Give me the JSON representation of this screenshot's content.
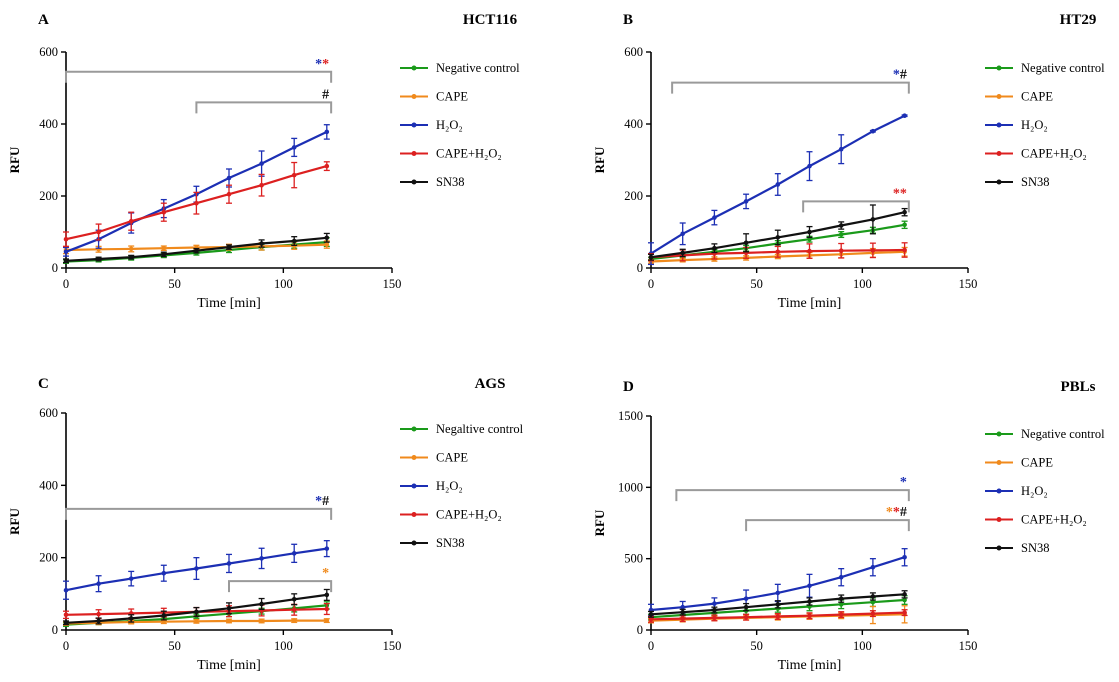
{
  "chart_data": [
    {
      "type": "line",
      "panel": "A",
      "title": "HCT116",
      "xlabel": "Time [min]",
      "ylabel": "RFU",
      "xlim": [
        0,
        150
      ],
      "ylim": [
        0,
        600
      ],
      "xticks": [
        "0",
        "50",
        "100",
        "150"
      ],
      "yticks": [
        "0",
        "200",
        "400",
        "600"
      ],
      "x": [
        0,
        15,
        30,
        45,
        60,
        75,
        90,
        105,
        120
      ],
      "series": [
        {
          "name": "Negative control",
          "color": "#1a9a1a",
          "values": [
            18,
            22,
            28,
            35,
            42,
            50,
            58,
            65,
            72
          ],
          "errors": [
            5,
            5,
            6,
            6,
            6,
            7,
            8,
            10,
            12
          ]
        },
        {
          "name": "CAPE",
          "color": "#f08a1c",
          "values": [
            50,
            52,
            53,
            55,
            57,
            58,
            60,
            62,
            65
          ],
          "errors": [
            10,
            8,
            8,
            6,
            6,
            8,
            10,
            10,
            10
          ]
        },
        {
          "name": "H₂O₂",
          "color": "#1c2fb4",
          "values": [
            45,
            80,
            125,
            165,
            205,
            250,
            290,
            335,
            378
          ],
          "errors": [
            12,
            25,
            28,
            25,
            22,
            25,
            35,
            25,
            20
          ]
        },
        {
          "name": "CAPE+H₂O₂",
          "color": "#dc2020",
          "values": [
            80,
            100,
            130,
            155,
            180,
            205,
            230,
            258,
            283
          ],
          "errors": [
            20,
            22,
            25,
            25,
            30,
            25,
            30,
            35,
            12
          ]
        },
        {
          "name": "SN38",
          "color": "#111111",
          "values": [
            20,
            25,
            30,
            38,
            48,
            58,
            68,
            75,
            84
          ],
          "errors": [
            5,
            5,
            5,
            6,
            6,
            6,
            10,
            12,
            12
          ]
        }
      ],
      "brackets": [
        {
          "x1": 0,
          "x2": 122,
          "y": 545,
          "labels": [
            {
              "text": "*",
              "color": "#1c2fb4"
            },
            {
              "text": "*",
              "color": "#dc2020"
            }
          ]
        },
        {
          "x1": 60,
          "x2": 122,
          "y": 460,
          "labels": [
            {
              "text": "#",
              "color": "#111111"
            }
          ]
        }
      ]
    },
    {
      "type": "line",
      "panel": "B",
      "title": "HT29",
      "xlabel": "Time [min]",
      "ylabel": "RFU",
      "xlim": [
        0,
        150
      ],
      "ylim": [
        0,
        600
      ],
      "xticks": [
        "0",
        "50",
        "100",
        "150"
      ],
      "yticks": [
        "0",
        "200",
        "400",
        "600"
      ],
      "x": [
        0,
        15,
        30,
        45,
        60,
        75,
        90,
        105,
        120
      ],
      "series": [
        {
          "name": "Negative control",
          "color": "#1a9a1a",
          "values": [
            25,
            35,
            45,
            55,
            68,
            80,
            93,
            105,
            120
          ],
          "errors": [
            5,
            6,
            6,
            8,
            8,
            8,
            8,
            8,
            10
          ]
        },
        {
          "name": "CAPE",
          "color": "#f08a1c",
          "values": [
            18,
            22,
            25,
            28,
            32,
            35,
            38,
            42,
            45
          ],
          "errors": [
            5,
            5,
            6,
            6,
            6,
            8,
            10,
            12,
            12
          ]
        },
        {
          "name": "H₂O₂",
          "color": "#1c2fb4",
          "values": [
            40,
            95,
            140,
            185,
            232,
            283,
            330,
            380,
            423
          ],
          "errors": [
            30,
            30,
            20,
            20,
            30,
            40,
            40,
            2,
            2
          ]
        },
        {
          "name": "CAPE+H₂O₂",
          "color": "#dc2020",
          "values": [
            30,
            35,
            40,
            42,
            45,
            47,
            48,
            49,
            50
          ],
          "errors": [
            10,
            15,
            15,
            15,
            15,
            20,
            20,
            20,
            20
          ]
        },
        {
          "name": "SN38",
          "color": "#111111",
          "values": [
            30,
            42,
            55,
            70,
            85,
            100,
            118,
            135,
            155
          ],
          "errors": [
            8,
            10,
            12,
            25,
            20,
            15,
            10,
            40,
            10
          ]
        }
      ],
      "brackets": [
        {
          "x1": 10,
          "x2": 122,
          "y": 515,
          "labels": [
            {
              "text": "*",
              "color": "#1c2fb4"
            },
            {
              "text": "#",
              "color": "#111111"
            }
          ]
        },
        {
          "x1": 72,
          "x2": 122,
          "y": 185,
          "labels": [
            {
              "text": "*",
              "color": "#dc2020"
            },
            {
              "text": "*",
              "color": "#dc2020"
            }
          ]
        }
      ]
    },
    {
      "type": "line",
      "panel": "C",
      "title": "AGS",
      "xlabel": "Time [min]",
      "ylabel": "RFU",
      "xlim": [
        0,
        150
      ],
      "ylim": [
        0,
        600
      ],
      "xticks": [
        "0",
        "50",
        "100",
        "150"
      ],
      "yticks": [
        "0",
        "200",
        "400",
        "600"
      ],
      "x": [
        0,
        15,
        30,
        45,
        60,
        75,
        90,
        105,
        120
      ],
      "series": [
        {
          "name": "Negaltive control",
          "color": "#1a9a1a",
          "values": [
            15,
            20,
            25,
            30,
            38,
            45,
            52,
            60,
            68
          ],
          "errors": [
            5,
            5,
            5,
            6,
            6,
            8,
            8,
            10,
            10
          ]
        },
        {
          "name": "CAPE",
          "color": "#f08a1c",
          "values": [
            18,
            20,
            22,
            23,
            24,
            25,
            25,
            26,
            26
          ],
          "errors": [
            5,
            5,
            5,
            5,
            5,
            5,
            5,
            5,
            5
          ]
        },
        {
          "name": "H₂O₂",
          "color": "#1c2fb4",
          "values": [
            110,
            128,
            142,
            157,
            170,
            184,
            198,
            212,
            225
          ],
          "errors": [
            25,
            22,
            20,
            22,
            30,
            25,
            28,
            25,
            22
          ]
        },
        {
          "name": "CAPE+H₂O₂",
          "color": "#dc2020",
          "values": [
            42,
            44,
            46,
            48,
            50,
            52,
            54,
            56,
            58
          ],
          "errors": [
            10,
            12,
            12,
            12,
            12,
            15,
            15,
            15,
            15
          ]
        },
        {
          "name": "SN38",
          "color": "#111111",
          "values": [
            20,
            25,
            32,
            40,
            50,
            60,
            72,
            85,
            97
          ],
          "errors": [
            5,
            8,
            10,
            12,
            12,
            15,
            15,
            15,
            15
          ]
        }
      ],
      "brackets": [
        {
          "x1": 0,
          "x2": 122,
          "y": 335,
          "labels": [
            {
              "text": "*",
              "color": "#1c2fb4"
            },
            {
              "text": "#",
              "color": "#111111"
            }
          ]
        },
        {
          "x1": 75,
          "x2": 122,
          "y": 135,
          "labels": [
            {
              "text": "*",
              "color": "#f08a1c"
            }
          ]
        }
      ]
    },
    {
      "type": "line",
      "panel": "D",
      "title": "PBLs",
      "xlabel": "Time [min]",
      "ylabel": "RFU",
      "xlim": [
        0,
        150
      ],
      "ylim": [
        0,
        1500
      ],
      "xticks": [
        "0",
        "50",
        "100",
        "150"
      ],
      "yticks": [
        "0",
        "500",
        "1000",
        "1500"
      ],
      "x": [
        0,
        15,
        30,
        45,
        60,
        75,
        90,
        105,
        120
      ],
      "series": [
        {
          "name": "Negative control",
          "color": "#1a9a1a",
          "values": [
            90,
            105,
            120,
            135,
            150,
            165,
            180,
            195,
            210
          ],
          "errors": [
            20,
            20,
            20,
            25,
            25,
            30,
            30,
            30,
            30
          ]
        },
        {
          "name": "CAPE",
          "color": "#f08a1c",
          "values": [
            65,
            72,
            80,
            85,
            90,
            95,
            100,
            105,
            110
          ],
          "errors": [
            15,
            15,
            15,
            15,
            20,
            20,
            20,
            60,
            60
          ]
        },
        {
          "name": "H₂O₂",
          "color": "#1c2fb4",
          "values": [
            140,
            160,
            185,
            220,
            260,
            310,
            370,
            440,
            510
          ],
          "errors": [
            40,
            40,
            40,
            60,
            60,
            80,
            60,
            60,
            60
          ]
        },
        {
          "name": "CAPE+H₂O₂",
          "color": "#dc2020",
          "values": [
            75,
            80,
            85,
            90,
            95,
            100,
            108,
            115,
            122
          ],
          "errors": [
            20,
            20,
            20,
            20,
            20,
            20,
            20,
            20,
            20
          ]
        },
        {
          "name": "SN38",
          "color": "#111111",
          "values": [
            110,
            125,
            140,
            160,
            180,
            200,
            220,
            235,
            250
          ],
          "errors": [
            20,
            20,
            20,
            25,
            25,
            25,
            25,
            25,
            25
          ]
        }
      ],
      "brackets": [
        {
          "x1": 12,
          "x2": 122,
          "y": 980,
          "labels": [
            {
              "text": "*",
              "color": "#1c2fb4"
            }
          ]
        },
        {
          "x1": 45,
          "x2": 122,
          "y": 770,
          "labels": [
            {
              "text": "*",
              "color": "#f08a1c"
            },
            {
              "text": "*",
              "color": "#dc2020"
            },
            {
              "text": "#",
              "color": "#111111"
            }
          ]
        }
      ]
    }
  ]
}
